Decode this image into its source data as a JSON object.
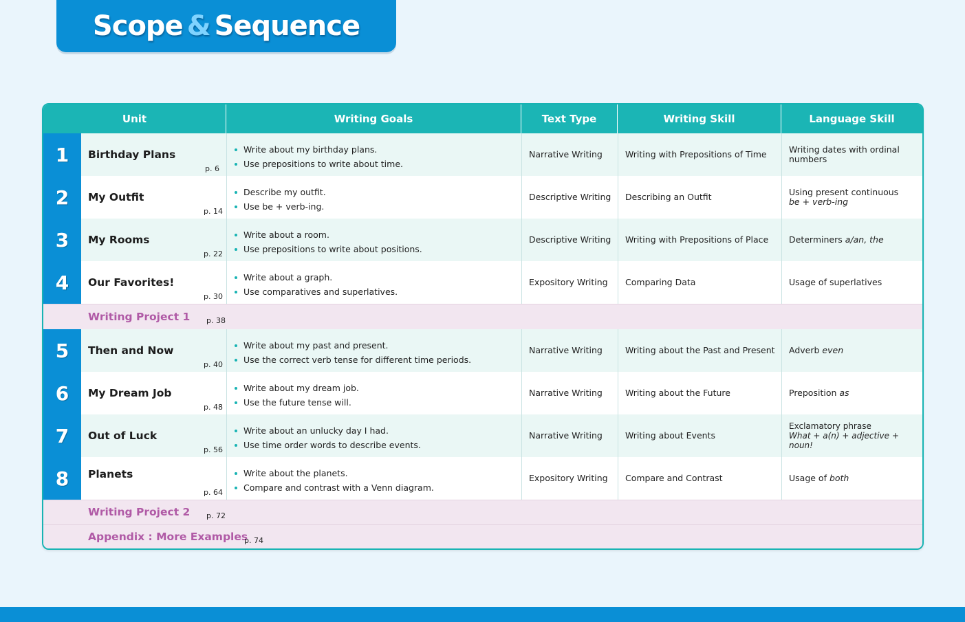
{
  "title": {
    "part1": "Scope",
    "amp": "&",
    "part2": "Sequence"
  },
  "headers": {
    "unit": "Unit",
    "goals": "Writing Goals",
    "text_type": "Text Type",
    "writing_skill": "Writing Skill",
    "language_skill": "Language Skill"
  },
  "units": [
    {
      "num": "1",
      "name": "Birthday Plans",
      "page": "p. 6",
      "goals": [
        "Write about my birthday plans.",
        "Use prepositions to write about time."
      ],
      "text_type": "Narrative Writing",
      "writing_skill": "Writing with Prepositions of Time",
      "language_skill": "Writing dates with ordinal numbers"
    },
    {
      "num": "2",
      "name": "My Outfit",
      "page": "p. 14",
      "goals": [
        "Describe my outfit.",
        "Use be + verb-ing."
      ],
      "text_type": "Descriptive Writing",
      "writing_skill": "Describing an Outfit",
      "language_skill_a": "Using present continuous",
      "language_skill_b": "be + verb-ing"
    },
    {
      "num": "3",
      "name": "My Rooms",
      "page": "p. 22",
      "goals": [
        "Write about a room.",
        "Use prepositions to write about positions."
      ],
      "text_type": "Descriptive Writing",
      "writing_skill": "Writing with Prepositions of Place",
      "language_skill_a": "Determiners",
      "language_skill_b": "a/an, the"
    },
    {
      "num": "4",
      "name": "Our Favorites!",
      "page": "p. 30",
      "goals": [
        "Write about a graph.",
        "Use comparatives and superlatives."
      ],
      "text_type": "Expository Writing",
      "writing_skill": "Comparing Data",
      "language_skill": "Usage of superlatives"
    },
    {
      "num": "5",
      "name": "Then and Now",
      "page": "p. 40",
      "goals": [
        "Write about my past and present.",
        "Use the correct verb tense for different time periods."
      ],
      "text_type": "Narrative Writing",
      "writing_skill": "Writing about the Past and Present",
      "language_skill_a": "Adverb",
      "language_skill_b": "even"
    },
    {
      "num": "6",
      "name": "My Dream Job",
      "page": "p. 48",
      "goals": [
        "Write about my dream job.",
        "Use the future tense will."
      ],
      "text_type": "Narrative Writing",
      "writing_skill": "Writing about the Future",
      "language_skill_a": "Preposition",
      "language_skill_b": "as"
    },
    {
      "num": "7",
      "name": "Out of Luck",
      "page": "p. 56",
      "goals": [
        "Write about an unlucky day I had.",
        "Use time order words to describe events."
      ],
      "text_type": "Narrative Writing",
      "writing_skill": "Writing about Events",
      "language_skill_a": "Exclamatory phrase",
      "language_skill_b": "What + a(n) + adjective + noun!"
    },
    {
      "num": "8",
      "name": "Planets",
      "page": "p. 64",
      "goals": [
        "Write about the planets.",
        "Compare and contrast with a Venn diagram."
      ],
      "text_type": "Expository Writing",
      "writing_skill": "Compare and Contrast",
      "language_skill_a": "Usage of",
      "language_skill_b": "both"
    }
  ],
  "projects": [
    {
      "name": "Writing Project 1",
      "page": "p. 38"
    },
    {
      "name": "Writing Project 2",
      "page": "p. 72"
    },
    {
      "name": "Appendix : More Examples",
      "page": "p. 74"
    }
  ],
  "colors": {
    "brand_blue": "#0a8fd6",
    "teal": "#1bb5b5",
    "project_purple": "#b05aa6"
  }
}
